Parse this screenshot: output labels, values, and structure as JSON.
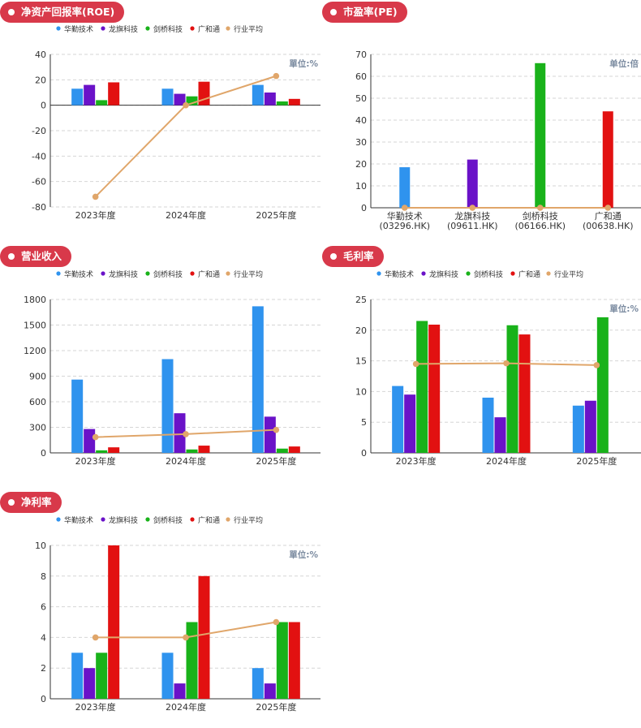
{
  "colors": {
    "title_bg": "#d8394a",
    "series": [
      "#2f93ee",
      "#6a12c8",
      "#19b21a",
      "#e21111",
      "#e0a66a"
    ],
    "grid": "#d6d6d6",
    "axis": "#333333",
    "unit_text": "#7b8ba0"
  },
  "legend": [
    "华勤技术",
    "龙旗科技",
    "剑桥科技",
    "广和通",
    "行业平均"
  ],
  "chart_data": [
    {
      "id": "roe",
      "type": "bar",
      "title": "净资产回报率(ROE)",
      "unit": "單位:%",
      "categories": [
        "2023年度",
        "2024年度",
        "2025年度"
      ],
      "yticks": [
        40,
        20,
        0,
        -20,
        -40,
        -60,
        -80
      ],
      "ylim": [
        -80,
        40
      ],
      "series": [
        {
          "name": "华勤技术",
          "values": [
            13,
            13,
            16
          ]
        },
        {
          "name": "龙旗科技",
          "values": [
            16,
            9,
            10
          ]
        },
        {
          "name": "剑桥科技",
          "values": [
            4,
            7,
            3
          ]
        },
        {
          "name": "广和通",
          "values": [
            18,
            18.5,
            5
          ]
        }
      ],
      "line": {
        "name": "行业平均",
        "values": [
          -72,
          0,
          23
        ]
      }
    },
    {
      "id": "pe",
      "type": "bar",
      "title": "市盈率(PE)",
      "unit": "单位:倍",
      "categories": [
        "华勤技术",
        "龙旗科技",
        "剑桥科技",
        "广和通"
      ],
      "codes": [
        "(03296.HK)",
        "(09611.HK)",
        "(06166.HK)",
        "(00638.HK)"
      ],
      "yticks": [
        70,
        60,
        50,
        40,
        30,
        20,
        10,
        0
      ],
      "ylim": [
        0,
        70
      ],
      "values": [
        18.5,
        22,
        66,
        44
      ],
      "line": {
        "name": "行业平均",
        "values": [
          0,
          0,
          0,
          0
        ]
      }
    },
    {
      "id": "revenue",
      "type": "bar",
      "title": "营业收入",
      "unit": "",
      "categories": [
        "2023年度",
        "2024年度",
        "2025年度"
      ],
      "yticks": [
        1800,
        1500,
        1200,
        900,
        600,
        300,
        0
      ],
      "ylim": [
        0,
        1800
      ],
      "series": [
        {
          "name": "华勤技术",
          "values": [
            860,
            1100,
            1720
          ]
        },
        {
          "name": "龙旗科技",
          "values": [
            280,
            465,
            425
          ]
        },
        {
          "name": "剑桥科技",
          "values": [
            30,
            40,
            50
          ]
        },
        {
          "name": "广和通",
          "values": [
            65,
            85,
            75
          ]
        }
      ],
      "line": {
        "name": "行业平均",
        "values": [
          185,
          220,
          270
        ]
      }
    },
    {
      "id": "gross_margin",
      "type": "bar",
      "title": "毛利率",
      "unit": "單位:%",
      "categories": [
        "2023年度",
        "2024年度",
        "2025年度"
      ],
      "yticks": [
        25,
        20,
        15,
        10,
        5,
        0
      ],
      "ylim": [
        0,
        25
      ],
      "series": [
        {
          "name": "华勤技术",
          "values": [
            10.9,
            9,
            7.7
          ]
        },
        {
          "name": "龙旗科技",
          "values": [
            9.5,
            5.8,
            8.5
          ]
        },
        {
          "name": "剑桥科技",
          "values": [
            21.5,
            20.8,
            22.1
          ]
        },
        {
          "name": "广和通",
          "values": [
            20.9,
            19.3,
            0
          ]
        }
      ],
      "line": {
        "name": "行业平均",
        "values": [
          14.5,
          14.6,
          14.3
        ]
      }
    },
    {
      "id": "net_margin",
      "type": "bar",
      "title": "净利率",
      "unit": "單位:%",
      "categories": [
        "2023年度",
        "2024年度",
        "2025年度"
      ],
      "yticks": [
        10,
        8,
        6,
        4,
        2,
        0
      ],
      "ylim": [
        0,
        10
      ],
      "series": [
        {
          "name": "华勤技术",
          "values": [
            3,
            3,
            2
          ]
        },
        {
          "name": "龙旗科技",
          "values": [
            2,
            1,
            1
          ]
        },
        {
          "name": "剑桥科技",
          "values": [
            3,
            5,
            5
          ]
        },
        {
          "name": "广和通",
          "values": [
            10,
            8,
            5
          ]
        }
      ],
      "line": {
        "name": "行业平均",
        "values": [
          4,
          4,
          5
        ]
      }
    }
  ]
}
